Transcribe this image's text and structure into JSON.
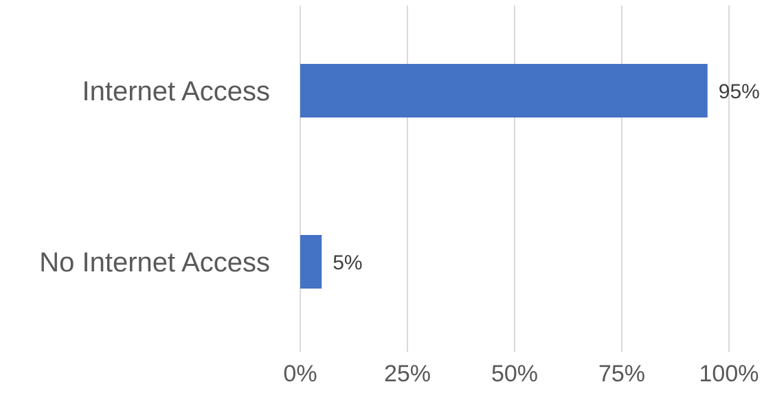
{
  "chart_data": {
    "type": "bar",
    "orientation": "horizontal",
    "categories": [
      "Internet Access",
      "No Internet Access"
    ],
    "values": [
      95,
      5
    ],
    "data_labels": [
      "95%",
      "5%"
    ],
    "x_ticks": [
      0,
      25,
      50,
      75,
      100
    ],
    "x_tick_labels": [
      "0%",
      "25%",
      "50%",
      "75%",
      "100%"
    ],
    "xlim": [
      0,
      100
    ],
    "grid": true,
    "legend": "none",
    "title": "",
    "xlabel": "",
    "ylabel": "",
    "colors": {
      "bar": "#4472C4",
      "grid": "#D9D9D9",
      "category_text": "#595959",
      "tick_text": "#595959",
      "data_label_text": "#404040"
    }
  }
}
